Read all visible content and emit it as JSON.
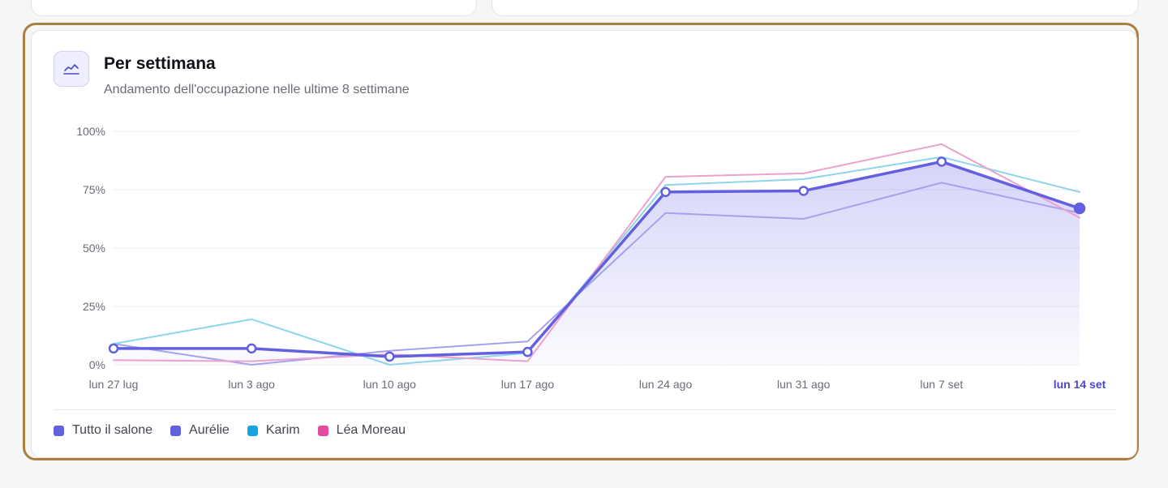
{
  "card": {
    "icon": "line-chart-icon",
    "title": "Per settimana",
    "subtitle": "Andamento dell'occupazione nelle ultime 8 settimane"
  },
  "chart_data": {
    "type": "line",
    "categories": [
      "lun 27 lug",
      "lun 3 ago",
      "lun 10 ago",
      "lun 17 ago",
      "lun 24 ago",
      "lun 31 ago",
      "lun 7 set",
      "lun 14 set"
    ],
    "highlighted_category": "lun 14 set",
    "ylim": [
      0,
      100
    ],
    "yticks": [
      0,
      25,
      50,
      75,
      100
    ],
    "ytick_labels": [
      "0%",
      "25%",
      "50%",
      "75%",
      "100%"
    ],
    "grid": true,
    "legend_position": "bottom-left",
    "series": [
      {
        "name": "Tutto il salone",
        "color": "#6360e0",
        "values": [
          7,
          7,
          3.5,
          5.5,
          74,
          74.5,
          87,
          67
        ],
        "emphasis": true,
        "area": true
      },
      {
        "name": "Aurélie",
        "color": "#a4a2ee",
        "values": [
          9,
          0,
          6,
          10,
          65,
          62.5,
          78,
          65
        ]
      },
      {
        "name": "Karim",
        "color": "#8dd5ea",
        "values": [
          9,
          19.5,
          0,
          5,
          77,
          79.5,
          89,
          74
        ]
      },
      {
        "name": "Léa Moreau",
        "color": "#eba2cf",
        "values": [
          2,
          1.5,
          4.5,
          1.5,
          80.5,
          82,
          94.5,
          63
        ]
      }
    ],
    "legend": [
      {
        "label": "Tutto il salone",
        "color": "#6360e0"
      },
      {
        "label": "Aurélie",
        "color": "#6360e0"
      },
      {
        "label": "Karim",
        "color": "#15a5e0"
      },
      {
        "label": "Léa Moreau",
        "color": "#e24c9d"
      }
    ]
  }
}
